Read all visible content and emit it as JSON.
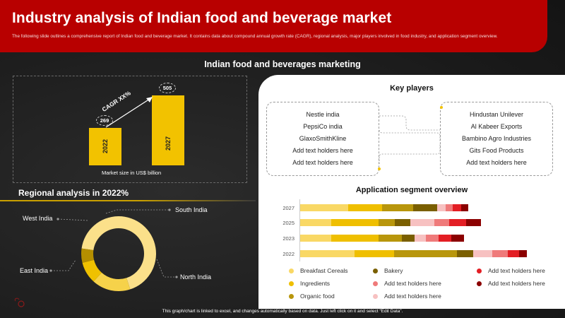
{
  "header": {
    "title": "Industry analysis of Indian food and beverage market",
    "subtitle": "The following slide outlines a comprehensive report of Indian food and beverage market. It contains data about compound annual growth rate (CAGR), regional analysis, major players involved in food industry, and application segment overview."
  },
  "section_title": "Indian food and beverages marketing",
  "market": {
    "cagr_label": "CAGR XX%",
    "caption": "Market size in US$ billion",
    "bars": [
      {
        "year": "2022",
        "value": 269
      },
      {
        "year": "2027",
        "value": 505
      }
    ]
  },
  "regional": {
    "title": "Regional analysis in 2022%",
    "labels": {
      "west": "West India",
      "south": "South India",
      "east": "East India",
      "north": "North India"
    },
    "colors": {
      "north": "#fbe08a",
      "east": "#f6d24a",
      "west": "#efc100",
      "south": "#b58f00"
    }
  },
  "key_players": {
    "title": "Key players",
    "left": [
      "Nestle india",
      "PepsiCo india",
      "GlaxoSmithKline",
      "Add text holders here",
      "Add text holders here"
    ],
    "right": [
      "Hindustan Unilever",
      "Al Kabeer Exports",
      "Bambino Agro Industries",
      "Gits Food Products",
      "Add text holders here"
    ]
  },
  "segment": {
    "title": "Application segment overview",
    "colors": [
      "#f9d865",
      "#efbf00",
      "#b8960c",
      "#7a5f00",
      "#f7c1c1",
      "#ef7a7a",
      "#e31e24",
      "#8b0000"
    ],
    "legend": [
      "Breakfast Cereals",
      "Bakery",
      "Add text holders here",
      "Ingredients",
      "Add text holders here",
      "Add text holders here",
      "Organic food",
      "Add text holders here"
    ],
    "rows": [
      {
        "year": "2027",
        "values": [
          68,
          48,
          44,
          34,
          12,
          10,
          12,
          10
        ]
      },
      {
        "year": "2025",
        "values": [
          44,
          67,
          23,
          22,
          34,
          21,
          24,
          21
        ]
      },
      {
        "year": "2023",
        "values": [
          44,
          67,
          33,
          18,
          16,
          18,
          18,
          18
        ]
      },
      {
        "year": "2022",
        "values": [
          77,
          56,
          89,
          23,
          27,
          22,
          16,
          11
        ]
      }
    ]
  },
  "footer": "This graph/chart is linked to excel, and changes automatically based on data. Just left click on it and select “Edit Data”."
}
